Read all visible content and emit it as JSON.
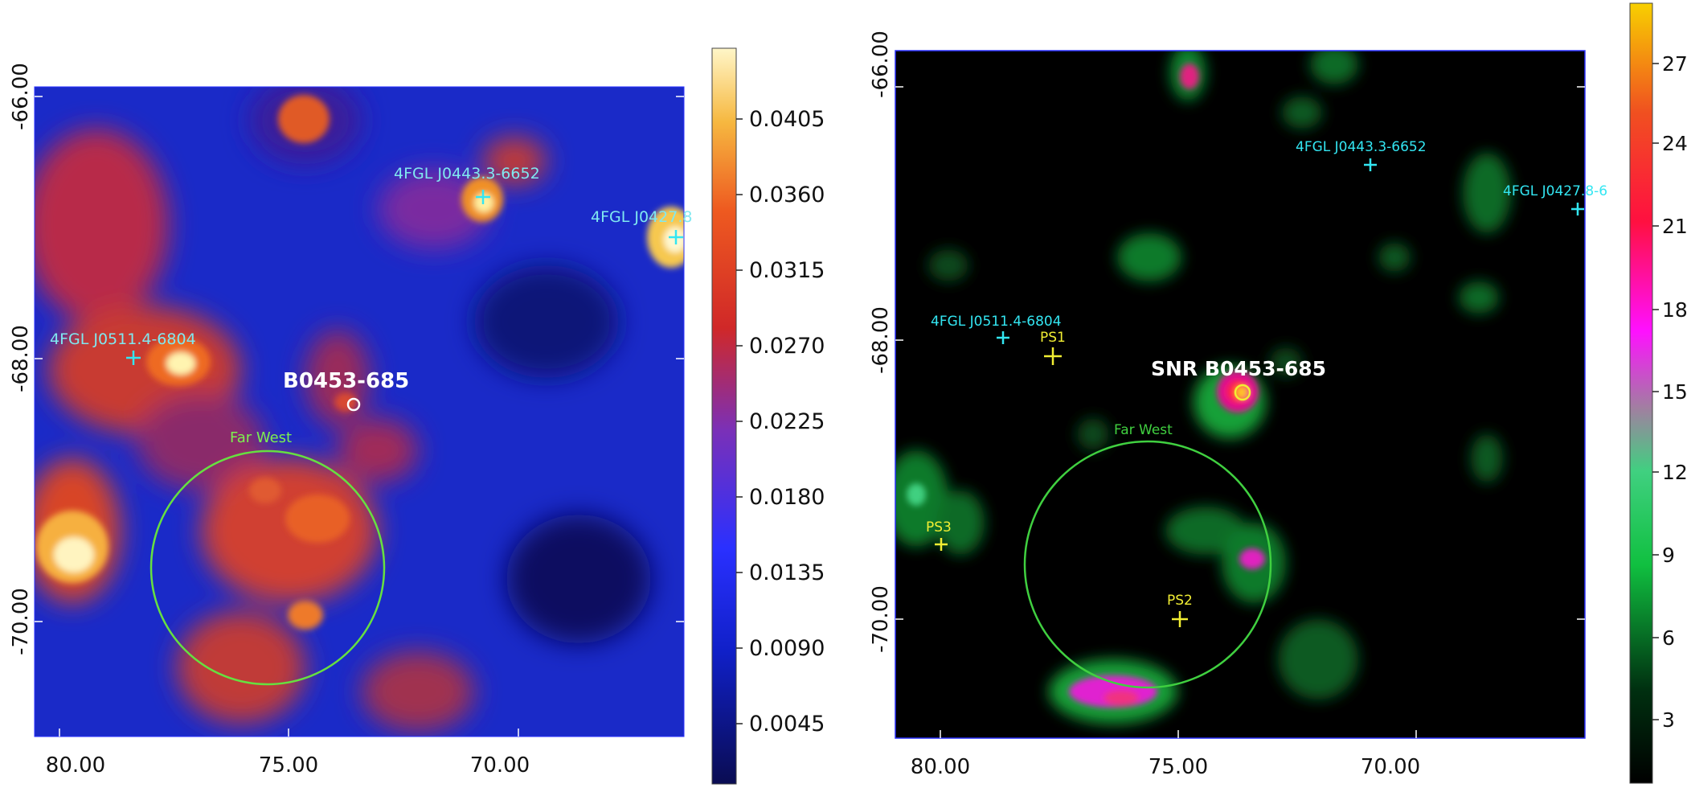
{
  "left_panel": {
    "y_ticks": [
      "-66.00",
      "-68.00",
      "-70.00"
    ],
    "x_ticks": [
      "80.00",
      "75.00",
      "70.00"
    ],
    "source_labels": {
      "fgl_0443": "4FGL J0443.3-6652",
      "fgl_0427": "4FGL J0427.8",
      "fgl_0511": "4FGL J0511.4-6804",
      "snr": "B0453-685",
      "region": "Far West"
    },
    "colorbar_ticks": [
      "0.0405",
      "0.0360",
      "0.0315",
      "0.0270",
      "0.0225",
      "0.0180",
      "0.0135",
      "0.0090",
      "0.0045"
    ],
    "colormap": "blue-red-yellow"
  },
  "right_panel": {
    "y_ticks": [
      "-66.00",
      "-68.00",
      "-70.00"
    ],
    "x_ticks": [
      "80.00",
      "75.00",
      "70.00"
    ],
    "source_labels": {
      "fgl_0443": "4FGL J0443.3-6652",
      "fgl_0427": "4FGL J0427.8-6",
      "fgl_0511": "4FGL J0511.4-6804",
      "ps1": "PS1",
      "ps2": "PS2",
      "ps3": "PS3",
      "snr": "SNR B0453-685",
      "region": "Far West"
    },
    "colorbar_ticks": [
      "27",
      "24",
      "21",
      "18",
      "15",
      "12",
      "9",
      "6",
      "3"
    ],
    "colormap": "black-green-magenta-yellow"
  },
  "colors": {
    "fgl_marker": "#33e6f2",
    "ps_marker": "#f2ee33",
    "region_circle": "#66e040",
    "snr_label": "#ffffff"
  }
}
